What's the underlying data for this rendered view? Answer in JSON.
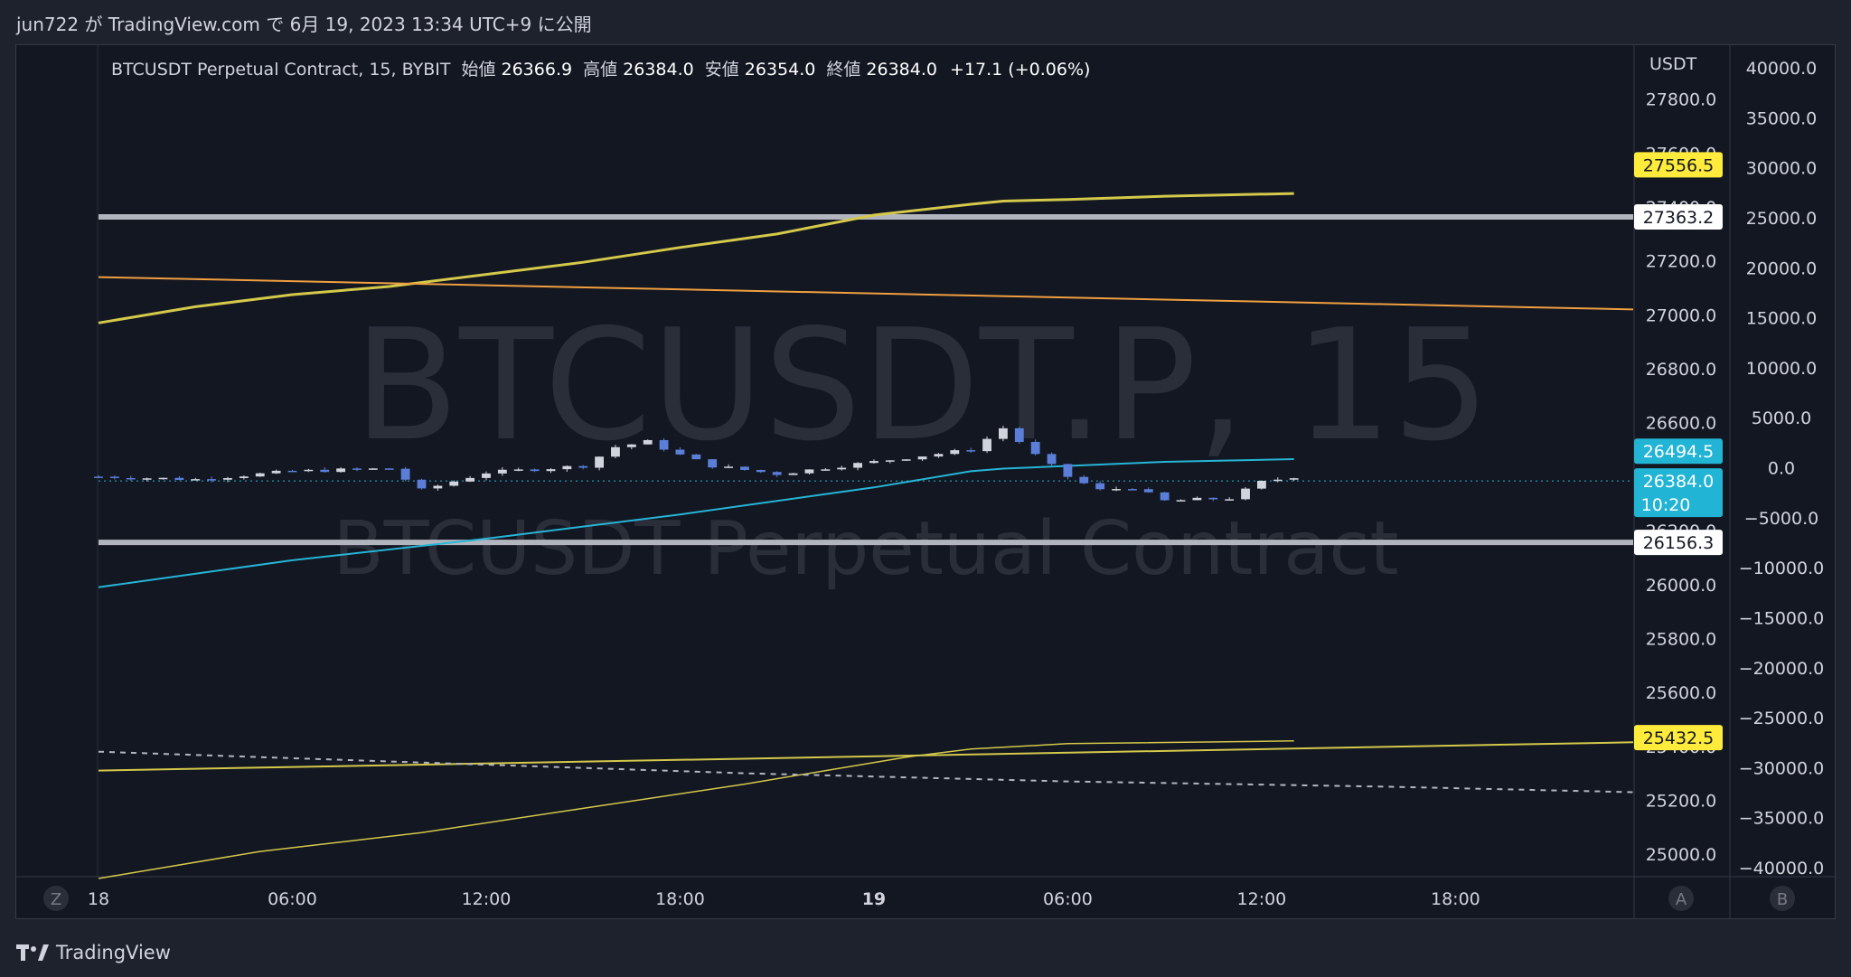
{
  "header": {
    "published_text": "jun722 が TradingView.com で 6月 19, 2023 13:34 UTC+9 に公開"
  },
  "legend": {
    "symbol": "BTCUSDT Perpetual Contract, 15, BYBIT",
    "open_label": "始値",
    "open": "26366.9",
    "high_label": "高値",
    "high": "26384.0",
    "low_label": "安値",
    "low": "26354.0",
    "close_label": "終値",
    "close": "26384.0",
    "change": "+17.1 (+0.06%)"
  },
  "watermark": {
    "line1": "BTCUSDT.P, 15",
    "line2": "BTCUSDT Perpetual Contract"
  },
  "footer": {
    "brand": "TradingView"
  },
  "colors": {
    "background": "#131722",
    "up_candle": "#d1d4dc",
    "down_candle": "#5b7fd8",
    "ma_yellow": "#d4c94a",
    "ma_orange": "#f0a040",
    "ma_cyan": "#26b5d6",
    "level_line": "#b2b5be",
    "label_yellow": "#ffeb3b",
    "label_cyan": "#22b4d4"
  },
  "chart_data": {
    "type": "candlestick",
    "right_axis_currency": "USDT",
    "price_axis_ticks": [
      "27800.0",
      "27600.0",
      "27400.0",
      "27200.0",
      "27000.0",
      "26800.0",
      "26600.0",
      "26400.0",
      "26200.0",
      "26000.0",
      "25800.0",
      "25600.0",
      "25400.0",
      "25200.0",
      "25000.0"
    ],
    "price_range": [
      24920,
      28000
    ],
    "secondary_axis_ticks": [
      "40000.0",
      "35000.0",
      "30000.0",
      "25000.0",
      "20000.0",
      "15000.0",
      "10000.0",
      "5000.0",
      "0.0",
      "−5000.0",
      "−10000.0",
      "−15000.0",
      "−20000.0",
      "−25000.0",
      "−30000.0",
      "−35000.0",
      "−40000.0"
    ],
    "x_ticks": [
      "18",
      "06:00",
      "12:00",
      "18:00",
      "19",
      "06:00",
      "12:00",
      "18:00"
    ],
    "x_tick_hours": [
      0,
      6,
      12,
      18,
      24,
      30,
      36,
      42
    ],
    "x_range_hours": [
      0,
      47.5
    ],
    "price_labels": [
      {
        "value": 27556.5,
        "text": "27556.5",
        "style": "yellow"
      },
      {
        "value": 27363.2,
        "text": "27363.2",
        "style": "white"
      },
      {
        "value": 26494.5,
        "text": "26494.5",
        "style": "cyan"
      },
      {
        "value": 26384.0,
        "text": "26384.0",
        "sub": "10:20",
        "style": "cyan"
      },
      {
        "value": 26156.3,
        "text": "26156.3",
        "style": "white"
      },
      {
        "value": 25432.5,
        "text": "25432.5",
        "style": "yellow"
      }
    ],
    "horizontal_levels": [
      27363.2,
      26156.3
    ],
    "last_price": 26384.0,
    "lines": [
      {
        "color_key": "ma_yellow",
        "width": 3,
        "points": [
          [
            0,
            26970
          ],
          [
            3,
            27030
          ],
          [
            6,
            27075
          ],
          [
            9,
            27105
          ],
          [
            12,
            27150
          ],
          [
            15,
            27195
          ],
          [
            18,
            27250
          ],
          [
            21,
            27300
          ],
          [
            24,
            27370
          ],
          [
            27,
            27410
          ],
          [
            28,
            27422
          ],
          [
            30,
            27428
          ],
          [
            33,
            27440
          ],
          [
            37,
            27450
          ]
        ]
      },
      {
        "color_key": "ma_orange",
        "width": 2,
        "points": [
          [
            0,
            27140
          ],
          [
            47.5,
            27020
          ]
        ]
      },
      {
        "color_key": "ma_cyan",
        "width": 2,
        "points": [
          [
            0,
            25990
          ],
          [
            6,
            26090
          ],
          [
            12,
            26170
          ],
          [
            18,
            26260
          ],
          [
            24,
            26360
          ],
          [
            27,
            26420
          ],
          [
            28,
            26430
          ],
          [
            30,
            26440
          ],
          [
            33,
            26455
          ],
          [
            37,
            26465
          ]
        ]
      },
      {
        "color_key": "ma_yellow",
        "width": 2,
        "points": [
          [
            0,
            25310
          ],
          [
            47.5,
            25415
          ]
        ]
      },
      {
        "color_key": "ma_yellow",
        "width": 1.5,
        "points": [
          [
            0,
            24910
          ],
          [
            5,
            25010
          ],
          [
            10,
            25080
          ],
          [
            15,
            25170
          ],
          [
            20,
            25260
          ],
          [
            25,
            25360
          ],
          [
            27,
            25390
          ],
          [
            30,
            25410
          ],
          [
            37,
            25420
          ]
        ]
      },
      {
        "color_key": "level_line",
        "width": 2,
        "dash": true,
        "points": [
          [
            0,
            25380
          ],
          [
            10,
            25340
          ],
          [
            20,
            25300
          ],
          [
            30,
            25270
          ],
          [
            40,
            25250
          ],
          [
            47.5,
            25230
          ]
        ]
      }
    ],
    "candles_summary": {
      "interval_minutes": 15,
      "path": [
        [
          0,
          26400
        ],
        [
          3,
          26390
        ],
        [
          6,
          26420
        ],
        [
          9,
          26430
        ],
        [
          10,
          26350
        ],
        [
          12,
          26415
        ],
        [
          15,
          26440
        ],
        [
          16,
          26510
        ],
        [
          17,
          26530
        ],
        [
          18,
          26480
        ],
        [
          19,
          26440
        ],
        [
          21,
          26410
        ],
        [
          23,
          26440
        ],
        [
          25,
          26470
        ],
        [
          27,
          26500
        ],
        [
          28,
          26580
        ],
        [
          29,
          26480
        ],
        [
          30,
          26400
        ],
        [
          31,
          26350
        ],
        [
          32,
          26360
        ],
        [
          33,
          26310
        ],
        [
          35,
          26320
        ],
        [
          36,
          26380
        ],
        [
          37,
          26400
        ],
        [
          37.3,
          26380
        ]
      ]
    }
  }
}
